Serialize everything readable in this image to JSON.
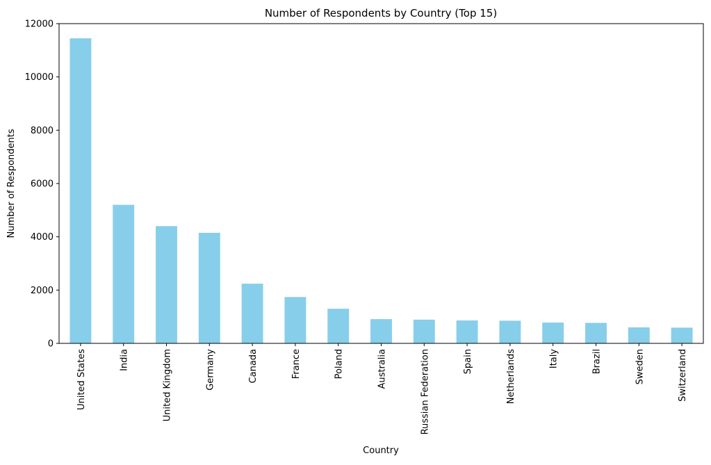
{
  "chart_data": {
    "type": "bar",
    "title": "Number of Respondents by Country (Top 15)",
    "xlabel": "Country",
    "ylabel": "Number of Respondents",
    "ylim": [
      0,
      12000
    ],
    "yticks": [
      0,
      2000,
      4000,
      6000,
      8000,
      10000,
      12000
    ],
    "grid": false,
    "bar_color": "#87ceeb",
    "categories": [
      "United States",
      "India",
      "United Kingdom",
      "Germany",
      "Canada",
      "France",
      "Poland",
      "Australia",
      "Russian Federation",
      "Spain",
      "Netherlands",
      "Italy",
      "Brazil",
      "Sweden",
      "Switzerland"
    ],
    "values": [
      11450,
      5200,
      4400,
      4150,
      2240,
      1740,
      1300,
      910,
      890,
      860,
      850,
      780,
      770,
      600,
      590
    ]
  }
}
